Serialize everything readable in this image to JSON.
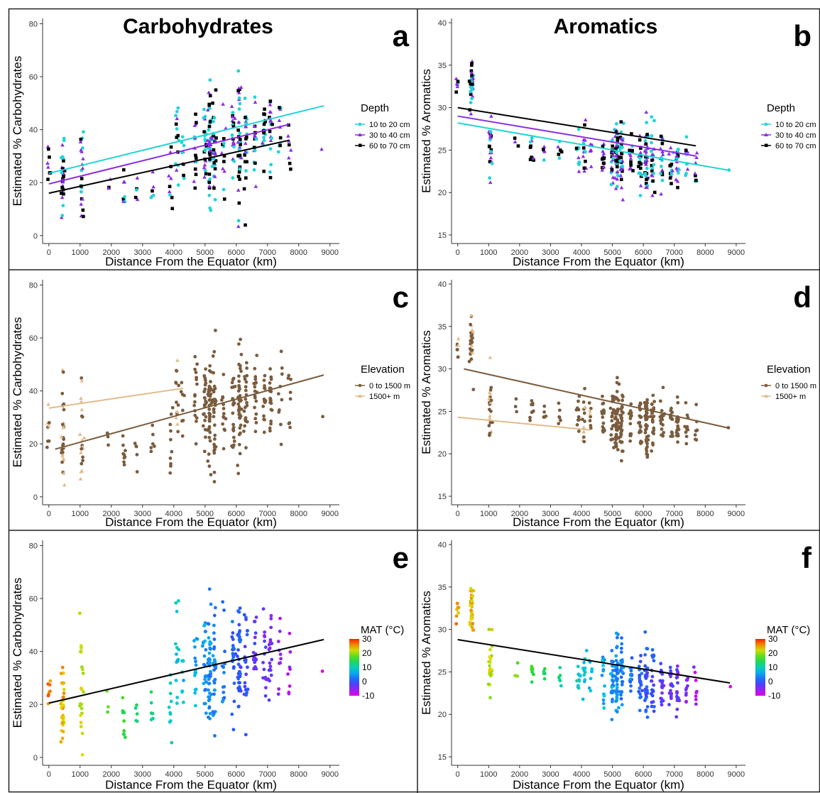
{
  "figure": {
    "legend_text_color": "#000000",
    "colors": {
      "depth_10_20": "#21d4d8",
      "depth_30_40": "#8a2be2",
      "depth_60_70": "#000000",
      "elev_low": "#7a5c3e",
      "elev_high": "#e2bb8c",
      "fit_line": "#000000"
    }
  },
  "chart_data": [
    {
      "id": "a",
      "type": "scatter",
      "panel_label": "a",
      "title": "Carbohydrates",
      "xlabel": "Distance From the Equator (km)",
      "ylabel": "Estimated % Carbohydrates",
      "xlim": [
        -200,
        9300
      ],
      "ylim": [
        -3,
        82
      ],
      "xticks": [
        "0",
        "1000",
        "2000",
        "3000",
        "4000",
        "5000",
        "6000",
        "7000",
        "8000",
        "9000"
      ],
      "yticks": [
        "0",
        "20",
        "40",
        "60",
        "80"
      ],
      "grid": false,
      "legend": {
        "title": "Depth",
        "entries": [
          "10 to 20 cm",
          "30 to 40 cm",
          "60 to 70 cm"
        ],
        "placement": "right"
      },
      "series": [
        {
          "name": "10 to 20 cm",
          "marker": "circle",
          "color": "#21d4d8",
          "fit": [
            [
              0,
              23.5
            ],
            [
              8800,
              49
            ]
          ]
        },
        {
          "name": "30 to 40 cm",
          "marker": "triangle",
          "color": "#8a2be2",
          "fit": [
            [
              0,
              19.5
            ],
            [
              7700,
              42
            ]
          ]
        },
        {
          "name": "60 to 70 cm",
          "marker": "square",
          "color": "#000000",
          "fit": [
            [
              0,
              16
            ],
            [
              7700,
              36
            ]
          ]
        }
      ]
    },
    {
      "id": "b",
      "type": "scatter",
      "panel_label": "b",
      "title": "Aromatics",
      "xlabel": "Distance From the Equator (km)",
      "ylabel": "Estimated % Aromatics",
      "xlim": [
        -200,
        9300
      ],
      "ylim": [
        14,
        40.5
      ],
      "xticks": [
        "0",
        "1000",
        "2000",
        "3000",
        "4000",
        "5000",
        "6000",
        "7000",
        "8000",
        "9000"
      ],
      "yticks": [
        "15",
        "20",
        "25",
        "30",
        "35",
        "40"
      ],
      "grid": false,
      "legend": {
        "title": "Depth",
        "entries": [
          "10 to 20 cm",
          "30 to 40 cm",
          "60 to 70 cm"
        ],
        "placement": "right"
      },
      "series": [
        {
          "name": "10 to 20 cm",
          "marker": "circle",
          "color": "#21d4d8",
          "fit": [
            [
              0,
              28.2
            ],
            [
              8800,
              22.6
            ]
          ]
        },
        {
          "name": "30 to 40 cm",
          "marker": "triangle",
          "color": "#8a2be2",
          "fit": [
            [
              0,
              29
            ],
            [
              7700,
              24.3
            ]
          ]
        },
        {
          "name": "60 to 70 cm",
          "marker": "square",
          "color": "#000000",
          "fit": [
            [
              0,
              30
            ],
            [
              7700,
              25.5
            ]
          ]
        }
      ]
    },
    {
      "id": "c",
      "type": "scatter",
      "panel_label": "c",
      "title": "",
      "xlabel": "Distance From the Equator (km)",
      "ylabel": "Estimated % Carbohydrates",
      "xlim": [
        -200,
        9300
      ],
      "ylim": [
        -3,
        82
      ],
      "xticks": [
        "0",
        "1000",
        "2000",
        "3000",
        "4000",
        "5000",
        "6000",
        "7000",
        "8000",
        "9000"
      ],
      "yticks": [
        "0",
        "20",
        "40",
        "60",
        "80"
      ],
      "grid": false,
      "legend": {
        "title": "Elevation",
        "entries": [
          "0 to 1500 m",
          "1500+ m"
        ],
        "placement": "right"
      },
      "series": [
        {
          "name": "0 to 1500 m",
          "marker": "circle",
          "color": "#7a5c3e",
          "fit": [
            [
              200,
              18
            ],
            [
              8800,
              46
            ]
          ]
        },
        {
          "name": "1500+ m",
          "marker": "triangle",
          "color": "#e2bb8c",
          "fit": [
            [
              0,
              33.5
            ],
            [
              4300,
              41
            ]
          ]
        }
      ]
    },
    {
      "id": "d",
      "type": "scatter",
      "panel_label": "d",
      "title": "",
      "xlabel": "Distance From the Equator (km)",
      "ylabel": "Estimated % Aromatics",
      "xlim": [
        -200,
        9300
      ],
      "ylim": [
        14,
        40.5
      ],
      "xticks": [
        "0",
        "1000",
        "2000",
        "3000",
        "4000",
        "5000",
        "6000",
        "7000",
        "8000",
        "9000"
      ],
      "yticks": [
        "15",
        "20",
        "25",
        "30",
        "35",
        "40"
      ],
      "grid": false,
      "legend": {
        "title": "Elevation",
        "entries": [
          "0 to 1500 m",
          "1500+ m"
        ],
        "placement": "right"
      },
      "series": [
        {
          "name": "0 to 1500 m",
          "marker": "circle",
          "color": "#7a5c3e",
          "fit": [
            [
              200,
              30
            ],
            [
              8800,
              23
            ]
          ]
        },
        {
          "name": "1500+ m",
          "marker": "triangle",
          "color": "#e2bb8c",
          "fit": [
            [
              0,
              24.3
            ],
            [
              4300,
              22.8
            ]
          ]
        }
      ]
    },
    {
      "id": "e",
      "type": "scatter",
      "panel_label": "e",
      "title": "",
      "xlabel": "Distance From the Equator (km)",
      "ylabel": "Estimated % Carbohydrates",
      "xlim": [
        -200,
        9300
      ],
      "ylim": [
        -3,
        82
      ],
      "xticks": [
        "0",
        "1000",
        "2000",
        "3000",
        "4000",
        "5000",
        "6000",
        "7000",
        "8000",
        "9000"
      ],
      "yticks": [
        "0",
        "20",
        "40",
        "60",
        "80"
      ],
      "grid": false,
      "legend": {
        "title": "MAT (°C)",
        "ticks": [
          "30",
          "20",
          "10",
          "0",
          "-10"
        ],
        "range": [
          -10,
          30
        ],
        "placement": "right",
        "colormap": "rainbow"
      },
      "fit": [
        [
          0,
          20.5
        ],
        [
          8800,
          44.5
        ]
      ]
    },
    {
      "id": "f",
      "type": "scatter",
      "panel_label": "f",
      "title": "",
      "xlabel": "Distance From the Equator (km)",
      "ylabel": "Estimated % Aromatics",
      "xlim": [
        -200,
        9300
      ],
      "ylim": [
        14,
        40.5
      ],
      "xticks": [
        "0",
        "1000",
        "2000",
        "3000",
        "4000",
        "5000",
        "6000",
        "7000",
        "8000",
        "9000"
      ],
      "yticks": [
        "15",
        "20",
        "25",
        "30",
        "35",
        "40"
      ],
      "grid": false,
      "legend": {
        "title": "MAT (°C)",
        "ticks": [
          "30",
          "20",
          "10",
          "0",
          "-10"
        ],
        "range": [
          -10,
          30
        ],
        "placement": "right",
        "colormap": "rainbow"
      },
      "fit": [
        [
          0,
          28.8
        ],
        [
          8800,
          23.7
        ]
      ]
    }
  ]
}
